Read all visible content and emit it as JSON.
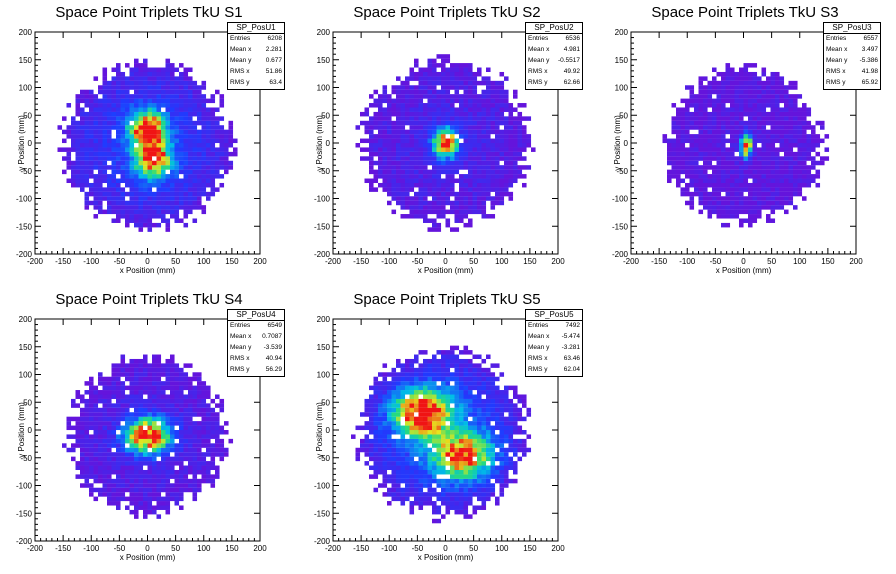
{
  "chart_data": [
    {
      "type": "heatmap",
      "title": "Space Point Triplets TkU S1",
      "xlabel": "x Position (mm)",
      "ylabel": "y Position (mm)",
      "xlim": [
        -200,
        200
      ],
      "ylim": [
        -200,
        200
      ],
      "xticks": [
        "-200",
        "-150",
        "-100",
        "-50",
        "0",
        "50",
        "100",
        "150",
        "200"
      ],
      "yticks": [
        "-200",
        "-150",
        "-100",
        "-50",
        "0",
        "50",
        "100",
        "150",
        "200"
      ],
      "stats": {
        "name": "SP_PosU1",
        "rows": [
          {
            "label": "Entries",
            "value": "6208"
          },
          {
            "label": "Mean x",
            "value": "2.281"
          },
          {
            "label": "Mean y",
            "value": "0.677"
          },
          {
            "label": "RMS x",
            "value": "51.86"
          },
          {
            "label": "RMS y",
            "value": "63.4"
          }
        ]
      },
      "extent": {
        "cx": 0,
        "cy": -5,
        "r": 160
      },
      "peaks": [
        {
          "x": 0,
          "y": 25,
          "sx": 22,
          "sy": 22,
          "w": 1.0
        },
        {
          "x": 10,
          "y": -30,
          "sx": 22,
          "sy": 22,
          "w": 0.95
        }
      ],
      "background": 0.18
    },
    {
      "type": "heatmap",
      "title": "Space Point Triplets TkU S2",
      "xlabel": "x Position (mm)",
      "ylabel": "y Position (mm)",
      "xlim": [
        -200,
        200
      ],
      "ylim": [
        -200,
        200
      ],
      "xticks": [
        "-200",
        "-150",
        "-100",
        "-50",
        "0",
        "50",
        "100",
        "150",
        "200"
      ],
      "yticks": [
        "-200",
        "-150",
        "-100",
        "-50",
        "0",
        "50",
        "100",
        "150",
        "200"
      ],
      "stats": {
        "name": "SP_PosU2",
        "rows": [
          {
            "label": "Entries",
            "value": "6536"
          },
          {
            "label": "Mean x",
            "value": "4.981"
          },
          {
            "label": "Mean y",
            "value": "-0.5517"
          },
          {
            "label": "RMS x",
            "value": "49.92"
          },
          {
            "label": "RMS y",
            "value": "62.66"
          }
        ]
      },
      "extent": {
        "cx": 0,
        "cy": 0,
        "r": 160
      },
      "peaks": [
        {
          "x": 0,
          "y": 0,
          "sx": 15,
          "sy": 18,
          "w": 1.0
        }
      ],
      "background": 0.08
    },
    {
      "type": "heatmap",
      "title": "Space Point Triplets TkU S3",
      "xlabel": "x Position (mm)",
      "ylabel": "y Position (mm)",
      "xlim": [
        -200,
        200
      ],
      "ylim": [
        -200,
        200
      ],
      "xticks": [
        "-200",
        "-150",
        "-100",
        "-50",
        "0",
        "50",
        "100",
        "150",
        "200"
      ],
      "yticks": [
        "-200",
        "-150",
        "-100",
        "-50",
        "0",
        "50",
        "100",
        "150",
        "200"
      ],
      "stats": {
        "name": "SP_PosU3",
        "rows": [
          {
            "label": "Entries",
            "value": "6557"
          },
          {
            "label": "Mean x",
            "value": "3.497"
          },
          {
            "label": "Mean y",
            "value": "-5.386"
          },
          {
            "label": "RMS x",
            "value": "41.98"
          },
          {
            "label": "RMS y",
            "value": "65.92"
          }
        ]
      },
      "extent": {
        "cx": 0,
        "cy": -5,
        "r": 150
      },
      "peaks": [
        {
          "x": 5,
          "y": -5,
          "sx": 7,
          "sy": 14,
          "w": 1.0
        }
      ],
      "background": 0.03
    },
    {
      "type": "heatmap",
      "title": "Space Point Triplets TkU S4",
      "xlabel": "x Position (mm)",
      "ylabel": "y Position (mm)",
      "xlim": [
        -200,
        200
      ],
      "ylim": [
        -200,
        200
      ],
      "xticks": [
        "-200",
        "-150",
        "-100",
        "-50",
        "0",
        "50",
        "100",
        "150",
        "200"
      ],
      "yticks": [
        "-200",
        "-150",
        "-100",
        "-50",
        "0",
        "50",
        "100",
        "150",
        "200"
      ],
      "stats": {
        "name": "SP_PosU4",
        "rows": [
          {
            "label": "Entries",
            "value": "6549"
          },
          {
            "label": "Mean x",
            "value": "0.7087"
          },
          {
            "label": "Mean y",
            "value": "-3.539"
          },
          {
            "label": "RMS x",
            "value": "40.94"
          },
          {
            "label": "RMS y",
            "value": "56.29"
          }
        ]
      },
      "extent": {
        "cx": 0,
        "cy": -10,
        "r": 150
      },
      "peaks": [
        {
          "x": 0,
          "y": -10,
          "sx": 28,
          "sy": 22,
          "w": 1.0
        }
      ],
      "background": 0.07
    },
    {
      "type": "heatmap",
      "title": "Space Point Triplets TkU S5",
      "xlabel": "x Position (mm)",
      "ylabel": "y Position (mm)",
      "xlim": [
        -200,
        200
      ],
      "ylim": [
        -200,
        200
      ],
      "xticks": [
        "-200",
        "-150",
        "-100",
        "-50",
        "0",
        "50",
        "100",
        "150",
        "200"
      ],
      "yticks": [
        "-200",
        "-150",
        "-100",
        "-50",
        "0",
        "50",
        "100",
        "150",
        "200"
      ],
      "stats": {
        "name": "SP_PosU5",
        "rows": [
          {
            "label": "Entries",
            "value": "7492"
          },
          {
            "label": "Mean x",
            "value": "-5.474"
          },
          {
            "label": "Mean y",
            "value": "-3.281"
          },
          {
            "label": "RMS x",
            "value": "63.46"
          },
          {
            "label": "RMS y",
            "value": "62.04"
          }
        ]
      },
      "extent": {
        "cx": -5,
        "cy": -5,
        "r": 160
      },
      "peaks": [
        {
          "x": -40,
          "y": 30,
          "sx": 35,
          "sy": 28,
          "w": 1.0
        },
        {
          "x": 30,
          "y": -45,
          "sx": 35,
          "sy": 28,
          "w": 0.85
        }
      ],
      "background": 0.22
    }
  ]
}
